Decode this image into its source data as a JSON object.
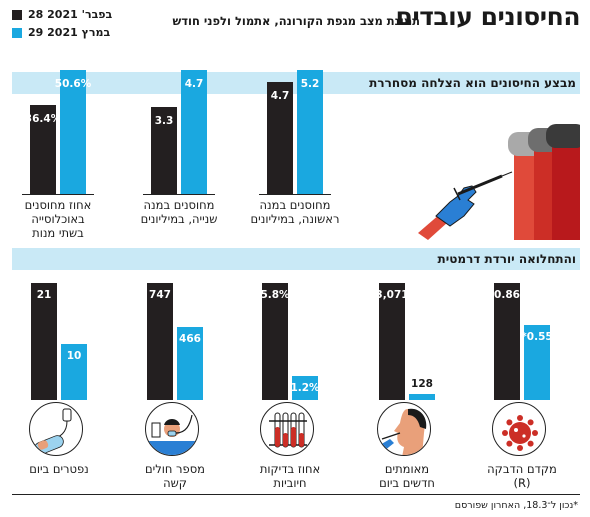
{
  "header": {
    "title": "החיסונים עובדים",
    "subtitle": "תמונת מצב מגפת הקורונה, אתמול ולפני חודש"
  },
  "legend": [
    {
      "label": "28 בפבר' 2021",
      "color": "#231f20"
    },
    {
      "label": "29 במרץ 2021",
      "color": "#1aa8e0"
    }
  ],
  "sections": {
    "top": "מבצע החיסונים הוא הצלחה מסחררת",
    "bottom": "והתחלואה יורדת דרמטית"
  },
  "chart_data": [
    {
      "type": "bar",
      "series": [
        {
          "name": "28 בפבר' 2021",
          "values": [
            4.7,
            3.3,
            36.4
          ]
        },
        {
          "name": "29 במרץ 2021",
          "values": [
            5.2,
            4.7,
            50.6
          ]
        }
      ],
      "categories": [
        "מחוסנים במנה ראשונה, במיליונים",
        "מחוסנים במנה שנייה, במיליונים",
        "אחוז מחוסנים באוכלוסייה בשתי מנות"
      ],
      "category_lines": [
        [
          "מחוסנים במנה",
          "ראשונה, במיליונים"
        ],
        [
          "מחוסנים במנה",
          "שנייה, במיליונים"
        ],
        [
          "אחוז מחוסנים",
          "באוכלוסייה",
          "בשתי מנות"
        ]
      ],
      "value_labels": [
        [
          "4.7",
          "5.2"
        ],
        [
          "3.3",
          "4.7"
        ],
        [
          "36.4%",
          "50.6%"
        ]
      ]
    },
    {
      "type": "bar",
      "series": [
        {
          "name": "28 בפבר' 2021",
          "values": [
            0.86,
            3071,
            5.8,
            747,
            21
          ]
        },
        {
          "name": "29 במרץ 2021",
          "values": [
            0.55,
            128,
            1.2,
            466,
            10
          ]
        }
      ],
      "categories": [
        "מקדם הדבקה (R)",
        "מאומתים חדשים ביום",
        "אחוז בדיקות חיוביות",
        "מספר חולים קשה",
        "נפטרים ביום"
      ],
      "category_lines": [
        [
          "מקדם הדבקה",
          "(R)"
        ],
        [
          "מאומתים",
          "חדשים ביום"
        ],
        [
          "אחוז בדיקות",
          "חיוביות"
        ],
        [
          "מספר חולים",
          "קשה"
        ],
        [
          "נפטרים ביום"
        ]
      ],
      "value_labels": [
        [
          "0.86",
          "*0.55"
        ],
        [
          "3,071",
          "128"
        ],
        [
          "5.8%",
          "1.2%"
        ],
        [
          "747",
          "466"
        ],
        [
          "21",
          "10"
        ]
      ],
      "icons": [
        "virus-icon",
        "nasal-swab-icon",
        "test-tubes-icon",
        "ventilated-patient-icon",
        "iv-drip-icon"
      ]
    }
  ],
  "footer": "*נכון ל־18.3, האחרון שפורסם"
}
